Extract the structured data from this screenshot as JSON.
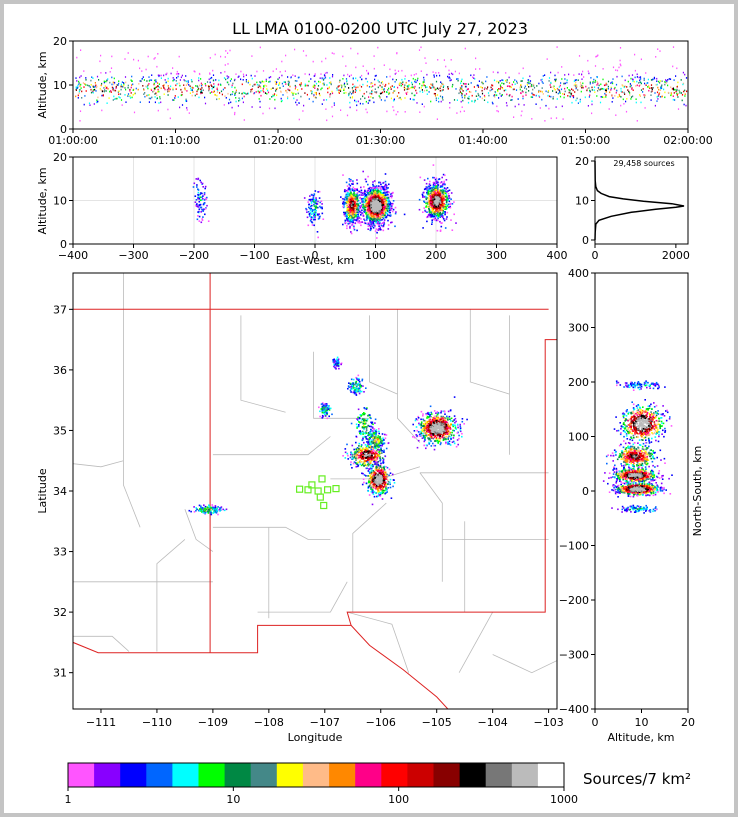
{
  "title": "LL LMA 0100-0200 UTC July 27, 2023",
  "colors": {
    "background": "#ffffff",
    "frame": "#c4c4c4",
    "state_line": "#dd2222",
    "county_line": "#bbbbbb",
    "station_marker": "#66ee22",
    "profile_line": "#000000"
  },
  "chart_data": [
    {
      "type": "scatter",
      "panel": "time-height",
      "ylabel": "Altitude, km",
      "xlim": [
        "01:00:00",
        "02:00:00"
      ],
      "ylim": [
        0,
        20
      ],
      "x_ticks": [
        "01:00:00",
        "01:10:00",
        "01:20:00",
        "01:30:00",
        "01:40:00",
        "01:50:00",
        "02:00:00"
      ],
      "y_ticks": [
        "0",
        "10",
        "20"
      ],
      "core_altitude_km": [
        6,
        13
      ],
      "grid": false
    },
    {
      "type": "scatter",
      "panel": "east-west-height",
      "xlabel": "East-West, km",
      "ylabel": "Altitude, km",
      "xlim": [
        -400,
        400
      ],
      "ylim": [
        0,
        20
      ],
      "x_ticks": [
        "−400",
        "−300",
        "−200",
        "−100",
        "0",
        "100",
        "200",
        "300",
        "400"
      ],
      "y_ticks": [
        "0",
        "10",
        "20"
      ],
      "clusters": [
        {
          "x": -190,
          "alt": 10,
          "width": 12,
          "count": 6
        },
        {
          "x": -3,
          "alt": 8.5,
          "width": 14,
          "count": 8
        },
        {
          "x": 60,
          "alt": 9,
          "width": 14,
          "count": 40
        },
        {
          "x": 100,
          "alt": 9,
          "width": 24,
          "count": 100
        },
        {
          "x": 200,
          "alt": 10,
          "width": 22,
          "count": 50
        }
      ],
      "grid": true
    },
    {
      "type": "line",
      "panel": "altitude-histogram",
      "annotation": "29,458 sources",
      "xlim": [
        0,
        2300
      ],
      "ylim": [
        0,
        20
      ],
      "x_ticks": [
        "0",
        "2000"
      ],
      "y_ticks": [
        "0",
        "10",
        "20"
      ],
      "points": [
        [
          0,
          0
        ],
        [
          5,
          2
        ],
        [
          20,
          4
        ],
        [
          100,
          5
        ],
        [
          400,
          6
        ],
        [
          900,
          7
        ],
        [
          1500,
          7.8
        ],
        [
          2000,
          8.3
        ],
        [
          2200,
          8.6
        ],
        [
          1900,
          9.2
        ],
        [
          1200,
          9.8
        ],
        [
          700,
          10.4
        ],
        [
          350,
          11
        ],
        [
          150,
          11.8
        ],
        [
          60,
          12.5
        ],
        [
          20,
          13.5
        ],
        [
          5,
          15
        ],
        [
          0,
          20
        ]
      ]
    },
    {
      "type": "scatter",
      "panel": "plan-view",
      "xlabel": "Longitude",
      "ylabel": "Latitude",
      "xlim": [
        -111.5,
        -102.85
      ],
      "ylim": [
        30.4,
        37.6
      ],
      "x_ticks": [
        "−111",
        "−110",
        "−109",
        "−108",
        "−107",
        "−106",
        "−105",
        "−104",
        "−103"
      ],
      "y_ticks": [
        "31",
        "32",
        "33",
        "34",
        "35",
        "36",
        "37"
      ],
      "clusters": [
        {
          "lon": -109.1,
          "lat": 33.7,
          "sx": 0.12,
          "sy": 0.03,
          "count": 12
        },
        {
          "lon": -107.0,
          "lat": 35.35,
          "sx": 0.05,
          "sy": 0.06,
          "count": 8
        },
        {
          "lon": -106.8,
          "lat": 36.12,
          "sx": 0.04,
          "sy": 0.04,
          "count": 4
        },
        {
          "lon": -106.45,
          "lat": 35.75,
          "sx": 0.06,
          "sy": 0.07,
          "count": 8
        },
        {
          "lon": -106.3,
          "lat": 35.1,
          "sx": 0.08,
          "sy": 0.15,
          "count": 10
        },
        {
          "lon": -106.25,
          "lat": 34.6,
          "sx": 0.15,
          "sy": 0.1,
          "count": 30
        },
        {
          "lon": -106.05,
          "lat": 34.2,
          "sx": 0.1,
          "sy": 0.12,
          "count": 40
        },
        {
          "lon": -106.1,
          "lat": 34.85,
          "sx": 0.08,
          "sy": 0.08,
          "count": 14
        },
        {
          "lon": -105.0,
          "lat": 35.05,
          "sx": 0.16,
          "sy": 0.12,
          "count": 60
        }
      ],
      "stations": [
        [
          -107.05,
          34.2
        ],
        [
          -107.23,
          34.1
        ],
        [
          -107.3,
          34.02
        ],
        [
          -107.12,
          34.0
        ],
        [
          -106.95,
          34.02
        ],
        [
          -107.08,
          33.9
        ],
        [
          -107.02,
          33.76
        ],
        [
          -107.45,
          34.03
        ],
        [
          -106.8,
          34.04
        ]
      ]
    },
    {
      "type": "scatter",
      "panel": "height-north-south",
      "xlabel": "Altitude, km",
      "ylabel": "North-South, km",
      "xlim": [
        0,
        20
      ],
      "ylim": [
        -400,
        400
      ],
      "x_ticks": [
        "0",
        "10",
        "20"
      ],
      "y_ticks": [
        "−400",
        "−300",
        "−200",
        "−100",
        "0",
        "100",
        "200",
        "300",
        "400"
      ],
      "clusters": [
        {
          "ns": 195,
          "alt": 9.5,
          "height": 8,
          "count": 6
        },
        {
          "ns": 125,
          "alt": 10,
          "height": 30,
          "count": 40
        },
        {
          "ns": 65,
          "alt": 8.5,
          "height": 20,
          "count": 30
        },
        {
          "ns": 30,
          "alt": 8.5,
          "height": 12,
          "count": 40
        },
        {
          "ns": 5,
          "alt": 9,
          "height": 10,
          "count": 50
        },
        {
          "ns": -32,
          "alt": 9,
          "height": 6,
          "count": 6
        }
      ]
    }
  ],
  "colorbar": {
    "label": "Sources/7 km²",
    "tick_labels": [
      "1",
      "10",
      "100",
      "1000"
    ],
    "colors": [
      "#ff55ff",
      "#8800ff",
      "#0000ff",
      "#0066ff",
      "#00ffff",
      "#00ff00",
      "#008844",
      "#448888",
      "#ffff00",
      "#ffbb88",
      "#ff8800",
      "#ff0088",
      "#ff0000",
      "#cc0000",
      "#880000",
      "#000000",
      "#777777",
      "#bbbbbb",
      "#ffffff"
    ]
  }
}
